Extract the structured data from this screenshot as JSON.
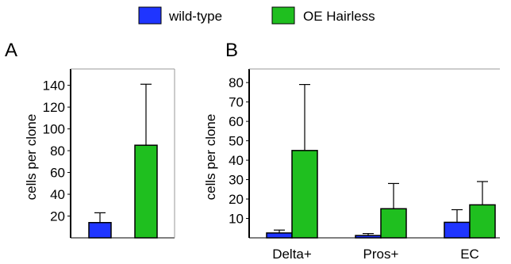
{
  "colors": {
    "wild_type": "#1f35ff",
    "oe_hairless": "#1fbf1f"
  },
  "legend": {
    "wild_type": "wild-type",
    "oe_hairless": "OE Hairless"
  },
  "chart_data": [
    {
      "type": "bar",
      "panel": "A",
      "categories": [
        ""
      ],
      "series": [
        {
          "name": "wild-type",
          "values": [
            14
          ],
          "error": [
            9
          ]
        },
        {
          "name": "OE Hairless",
          "values": [
            85
          ],
          "error": [
            56
          ]
        }
      ],
      "ylabel": "cells per clone",
      "ylim": [
        0,
        155
      ],
      "yticks": [
        20,
        40,
        60,
        80,
        100,
        120,
        140
      ],
      "grid": false,
      "legend": "top"
    },
    {
      "type": "bar",
      "panel": "B",
      "categories": [
        "Delta+",
        "Pros+",
        "EC"
      ],
      "series": [
        {
          "name": "wild-type",
          "values": [
            2.5,
            1.2,
            8
          ],
          "error": [
            1.5,
            1,
            6.5
          ]
        },
        {
          "name": "OE Hairless",
          "values": [
            45,
            15,
            17
          ],
          "error": [
            34,
            13,
            12
          ]
        }
      ],
      "ylabel": "cells per clone",
      "ylim": [
        0,
        87
      ],
      "yticks": [
        10,
        20,
        30,
        40,
        50,
        60,
        70,
        80
      ],
      "grid": false,
      "legend": "top"
    }
  ]
}
